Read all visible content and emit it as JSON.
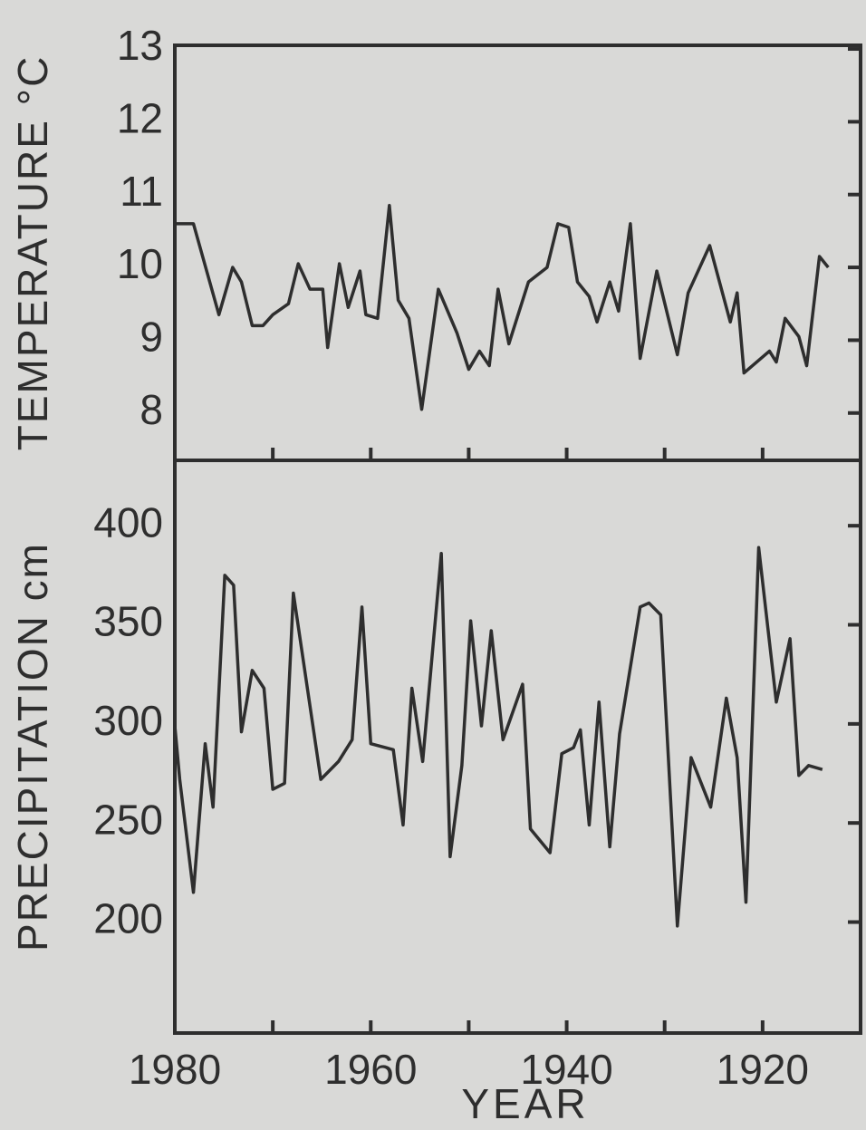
{
  "chart_data": [
    {
      "type": "line",
      "ylabel": "TEMPERATURE °C",
      "xlim": [
        1980,
        1910
      ],
      "ylim": [
        7.35,
        13.05
      ],
      "yticks": [
        8,
        9,
        10,
        11,
        12,
        13
      ],
      "xticks": [
        1980,
        1960,
        1940,
        1920
      ],
      "xminor_ticks": [
        1970,
        1950,
        1930
      ],
      "series": [
        {
          "color": "#2e2e2e",
          "x": [
            1980.0,
            1978.1,
            1975.5,
            1974.1,
            1973.2,
            1972.1,
            1971.0,
            1970.0,
            1968.4,
            1967.4,
            1966.2,
            1964.9,
            1964.4,
            1963.2,
            1962.3,
            1961.1,
            1960.5,
            1959.3,
            1958.1,
            1957.2,
            1956.1,
            1954.8,
            1953.1,
            1951.2,
            1950.0,
            1948.9,
            1947.9,
            1947.0,
            1945.9,
            1943.9,
            1942.0,
            1940.9,
            1939.8,
            1938.9,
            1937.7,
            1936.9,
            1935.6,
            1934.7,
            1933.5,
            1932.5,
            1930.8,
            1928.7,
            1927.6,
            1925.4,
            1923.3,
            1922.6,
            1921.9,
            1919.3,
            1918.6,
            1917.7,
            1916.3,
            1915.5,
            1914.2,
            1913.3
          ],
          "values": [
            10.6,
            10.6,
            9.35,
            10.0,
            9.8,
            9.2,
            9.2,
            9.35,
            9.5,
            10.05,
            9.7,
            9.7,
            8.9,
            10.05,
            9.45,
            9.95,
            9.35,
            9.3,
            10.85,
            9.55,
            9.3,
            8.05,
            9.7,
            9.1,
            8.6,
            8.85,
            8.65,
            9.7,
            8.95,
            9.8,
            10.0,
            10.6,
            10.55,
            9.8,
            9.6,
            9.25,
            9.8,
            9.4,
            10.6,
            8.75,
            9.95,
            8.8,
            9.65,
            10.3,
            9.25,
            9.65,
            8.55,
            8.85,
            8.7,
            9.3,
            9.05,
            8.65,
            10.15,
            10.0
          ]
        }
      ]
    },
    {
      "type": "line",
      "ylabel": "PRECIPITATION cm",
      "xlabel": "YEAR",
      "xlim": [
        1980,
        1910
      ],
      "ylim": [
        144,
        433
      ],
      "yticks": [
        200,
        250,
        300,
        350,
        400
      ],
      "xticks": [
        1980,
        1960,
        1940,
        1920
      ],
      "xminor_ticks": [
        1970,
        1950,
        1930
      ],
      "series": [
        {
          "color": "#2e2e2e",
          "x": [
            1980.0,
            1979.5,
            1978.1,
            1976.9,
            1976.1,
            1974.9,
            1974.0,
            1973.2,
            1972.1,
            1970.9,
            1970.0,
            1968.8,
            1967.9,
            1965.1,
            1963.3,
            1961.9,
            1960.9,
            1960.0,
            1957.7,
            1956.7,
            1955.8,
            1954.7,
            1952.8,
            1951.9,
            1950.7,
            1949.8,
            1948.7,
            1947.7,
            1946.5,
            1944.5,
            1943.7,
            1941.7,
            1940.5,
            1939.3,
            1938.6,
            1937.7,
            1936.7,
            1935.6,
            1934.6,
            1932.5,
            1931.6,
            1930.4,
            1928.7,
            1927.3,
            1925.3,
            1923.7,
            1922.6,
            1921.7,
            1920.4,
            1918.6,
            1917.2,
            1916.3,
            1915.3,
            1913.9
          ],
          "values": [
            299,
            272,
            215,
            290,
            258,
            375,
            370,
            296,
            327,
            318,
            267,
            270,
            366,
            272,
            281,
            292,
            359,
            290,
            287,
            249,
            318,
            281,
            386,
            233,
            279,
            352,
            299,
            347,
            292,
            320,
            247,
            235,
            285,
            288,
            297,
            249,
            311,
            238,
            295,
            359,
            361,
            355,
            198,
            283,
            258,
            313,
            283,
            210,
            389,
            311,
            343,
            274,
            279,
            277
          ]
        }
      ]
    }
  ]
}
